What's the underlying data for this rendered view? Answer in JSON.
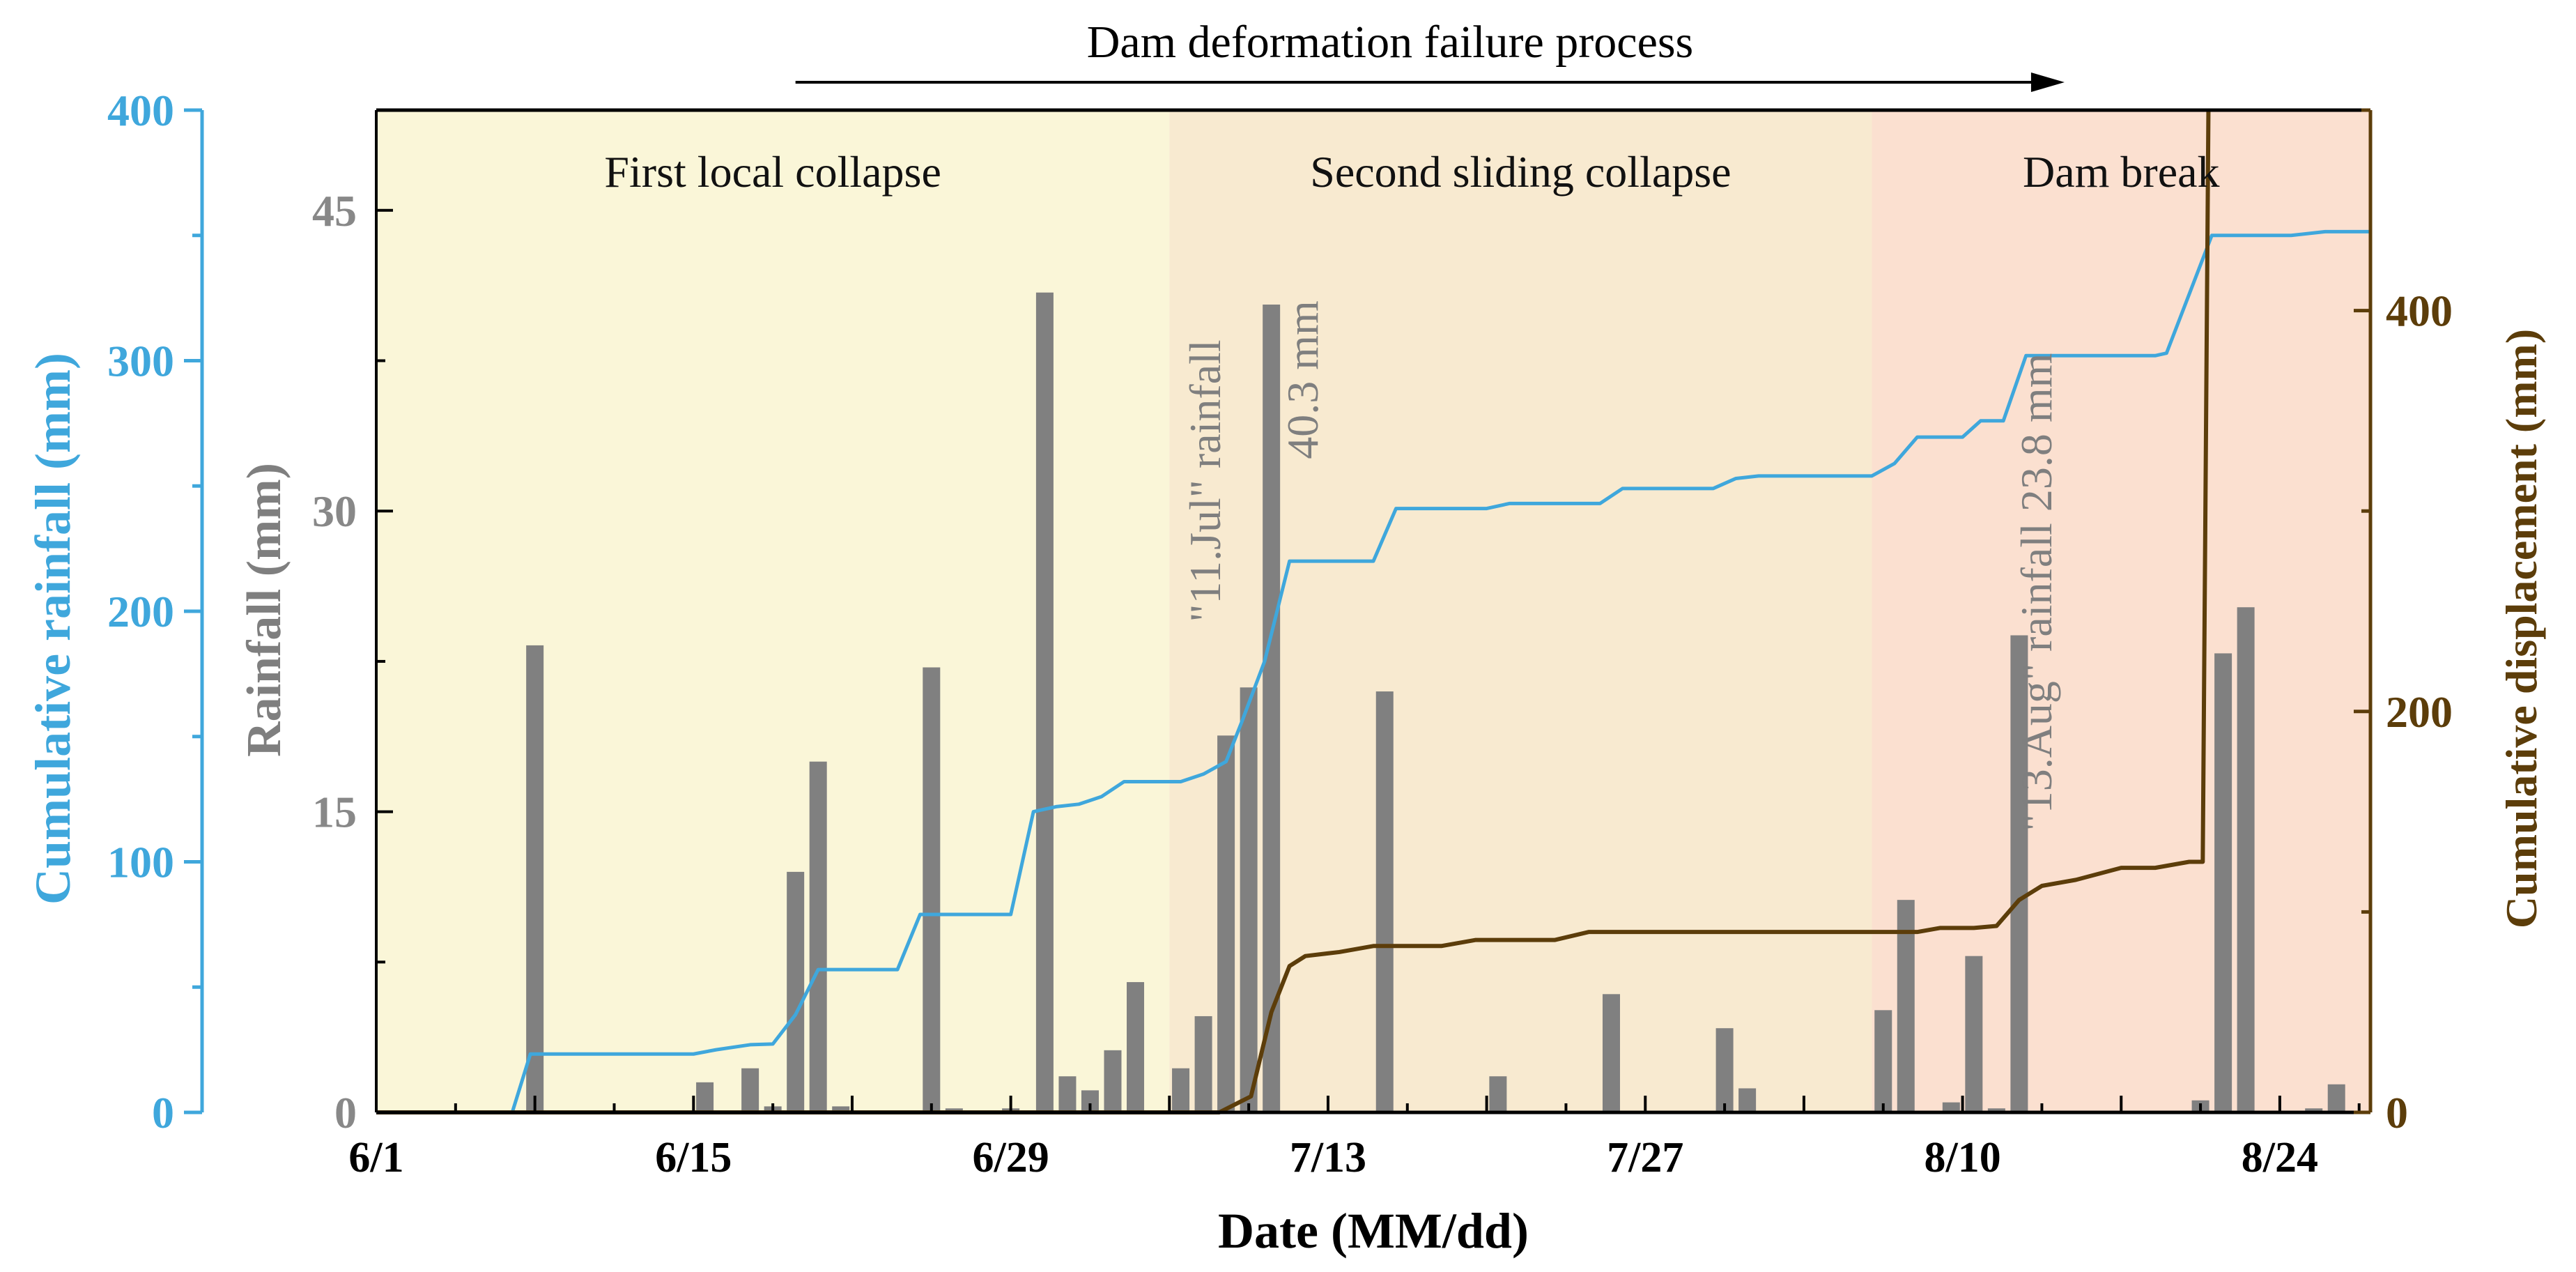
{
  "colors": {
    "rainfall_axis": "#888888",
    "bar": "#808080",
    "cumulative_rainfall": "#3fa7dc",
    "cumulative_displacement": "#5c3d0a",
    "phase1_bg": "#faf6d8",
    "phase2_bg": "#f8ead0",
    "phase3_bg": "#fbe0d0"
  },
  "chart_data": {
    "type": "bar",
    "title": "Dam deformation failure process",
    "xlabel": "Date (MM/dd)",
    "x_day_range": [
      0,
      88
    ],
    "x_ticks": [
      {
        "day": 0,
        "label": "6/1"
      },
      {
        "day": 14,
        "label": "6/15"
      },
      {
        "day": 28,
        "label": "6/29"
      },
      {
        "day": 42,
        "label": "7/13"
      },
      {
        "day": 56,
        "label": "7/27"
      },
      {
        "day": 70,
        "label": "8/10"
      },
      {
        "day": 84,
        "label": "8/24"
      }
    ],
    "y_rainfall": {
      "label": "Rainfall (mm)",
      "range": [
        0,
        50
      ],
      "ticks": [
        0,
        15,
        30,
        45
      ]
    },
    "y_cumulative_rainfall": {
      "label": "Cumulative rainfall (mm)",
      "range": [
        0,
        400
      ],
      "ticks": [
        0,
        100,
        200,
        300,
        400
      ]
    },
    "y_cumulative_displacement": {
      "label": "Cumulative displacement (mm)",
      "range": [
        0,
        500
      ],
      "ticks": [
        0,
        200,
        400
      ]
    },
    "phases": [
      {
        "label": "First local collapse",
        "start_day": 0,
        "end_day": 35
      },
      {
        "label": "Second sliding collapse",
        "start_day": 35,
        "end_day": 66
      },
      {
        "label": "Dam break",
        "start_day": 66,
        "end_day": 88
      }
    ],
    "process_arrow": {
      "start_day": 18.5,
      "end_day": 74.5
    },
    "annotations": [
      {
        "line1": "\"11.Jul\"  rainfall",
        "line2": "40.3 mm",
        "day": 40
      },
      {
        "line1": "\"13.Aug\"  rainfall 23.8 mm",
        "line2": "",
        "day": 73
      }
    ],
    "series": [
      {
        "name": "Rainfall",
        "type": "bar",
        "axis": "y_rainfall",
        "points": [
          {
            "day": 7,
            "value": 23.3
          },
          {
            "day": 14.5,
            "value": 1.5
          },
          {
            "day": 16.5,
            "value": 2.2
          },
          {
            "day": 17.5,
            "value": 0.3
          },
          {
            "day": 18.5,
            "value": 12.0
          },
          {
            "day": 19.5,
            "value": 17.5
          },
          {
            "day": 20.5,
            "value": 0.3
          },
          {
            "day": 24.5,
            "value": 22.2
          },
          {
            "day": 25.5,
            "value": 0.2
          },
          {
            "day": 28,
            "value": 0.2
          },
          {
            "day": 29.5,
            "value": 40.9
          },
          {
            "day": 30.5,
            "value": 1.8
          },
          {
            "day": 31.5,
            "value": 1.1
          },
          {
            "day": 32.5,
            "value": 3.1
          },
          {
            "day": 33.5,
            "value": 6.5
          },
          {
            "day": 35.5,
            "value": 2.2
          },
          {
            "day": 36.5,
            "value": 4.8
          },
          {
            "day": 37.5,
            "value": 18.8
          },
          {
            "day": 38.5,
            "value": 21.2
          },
          {
            "day": 39.5,
            "value": 40.3
          },
          {
            "day": 44.5,
            "value": 21.0
          },
          {
            "day": 49.5,
            "value": 1.8
          },
          {
            "day": 54.5,
            "value": 5.9
          },
          {
            "day": 59.5,
            "value": 4.2
          },
          {
            "day": 60.5,
            "value": 1.2
          },
          {
            "day": 66.5,
            "value": 5.1
          },
          {
            "day": 67.5,
            "value": 10.6
          },
          {
            "day": 69.5,
            "value": 0.5
          },
          {
            "day": 70.5,
            "value": 7.8
          },
          {
            "day": 71.5,
            "value": 0.2
          },
          {
            "day": 72.5,
            "value": 23.8
          },
          {
            "day": 80.5,
            "value": 0.6
          },
          {
            "day": 81.5,
            "value": 22.9
          },
          {
            "day": 82.5,
            "value": 25.2
          },
          {
            "day": 85.5,
            "value": 0.2
          },
          {
            "day": 86.5,
            "value": 1.4
          }
        ]
      },
      {
        "name": "Cumulative rainfall",
        "type": "line",
        "axis": "y_cumulative_rainfall",
        "points": [
          [
            0,
            0
          ],
          [
            6,
            0
          ],
          [
            6.8,
            23.3
          ],
          [
            14,
            23.3
          ],
          [
            15,
            25
          ],
          [
            16.5,
            27
          ],
          [
            17.5,
            27.3
          ],
          [
            18.5,
            39
          ],
          [
            19.5,
            57
          ],
          [
            23,
            57
          ],
          [
            24,
            79
          ],
          [
            28,
            79
          ],
          [
            29,
            120
          ],
          [
            30,
            122
          ],
          [
            31,
            123
          ],
          [
            32,
            126
          ],
          [
            33,
            132
          ],
          [
            35.5,
            132
          ],
          [
            36.5,
            135
          ],
          [
            37.5,
            140
          ],
          [
            38.2,
            156
          ],
          [
            39.2,
            180
          ],
          [
            40.3,
            220
          ],
          [
            44,
            220
          ],
          [
            45,
            241
          ],
          [
            49,
            241
          ],
          [
            50,
            243
          ],
          [
            54,
            243
          ],
          [
            55,
            249
          ],
          [
            59,
            249
          ],
          [
            60,
            253
          ],
          [
            61,
            254
          ],
          [
            66,
            254
          ],
          [
            67,
            259
          ],
          [
            68,
            269.5
          ],
          [
            70,
            269.5
          ],
          [
            70.8,
            276
          ],
          [
            71.8,
            276
          ],
          [
            72.8,
            302
          ],
          [
            78.5,
            302
          ],
          [
            79,
            303
          ],
          [
            81,
            350
          ],
          [
            84.5,
            350
          ],
          [
            86,
            351.5
          ],
          [
            88,
            351.5
          ]
        ]
      },
      {
        "name": "Cumulative displacement",
        "type": "line",
        "axis": "y_cumulative_displacement",
        "points": [
          [
            0,
            0
          ],
          [
            37.2,
            0
          ],
          [
            38.6,
            8
          ],
          [
            39.5,
            50
          ],
          [
            40.3,
            73
          ],
          [
            41,
            78
          ],
          [
            42.5,
            80
          ],
          [
            44,
            83
          ],
          [
            47,
            83
          ],
          [
            48.5,
            86
          ],
          [
            52,
            86
          ],
          [
            53.5,
            90
          ],
          [
            62,
            90
          ],
          [
            66,
            90
          ],
          [
            68,
            90
          ],
          [
            69,
            92
          ],
          [
            70.5,
            92
          ],
          [
            71.5,
            93
          ],
          [
            72.5,
            106
          ],
          [
            73.5,
            113
          ],
          [
            75,
            116
          ],
          [
            77,
            122
          ],
          [
            78.5,
            122
          ],
          [
            80,
            125
          ],
          [
            80.6,
            125
          ],
          [
            80.85,
            500
          ]
        ]
      }
    ]
  }
}
